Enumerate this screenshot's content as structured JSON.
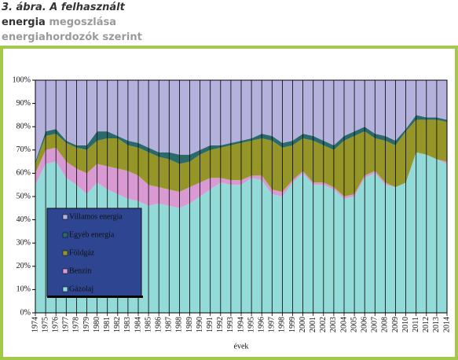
{
  "header": {
    "line1": "3. ábra. A felhasznált",
    "line2a": "energia",
    "line2b": "megoszlása",
    "line3": "energiahordozók szerint"
  },
  "chart_data": {
    "type": "area",
    "stacked": true,
    "x_label": "évek",
    "legend": "lower left",
    "grid": false,
    "x": [
      1974,
      1975,
      1976,
      1977,
      1978,
      1979,
      1980,
      1981,
      1982,
      1983,
      1984,
      1985,
      1986,
      1987,
      1988,
      1989,
      1990,
      1991,
      1992,
      1993,
      1994,
      1995,
      1996,
      1997,
      1998,
      1999,
      2000,
      2001,
      2002,
      2003,
      2004,
      2005,
      2006,
      2007,
      2008,
      2009,
      2010,
      2011,
      2012,
      2013,
      2014
    ],
    "xlim": [
      1974,
      2014
    ],
    "ylim": [
      0,
      100
    ],
    "yticks": [
      {
        "value": 0,
        "label": "0%"
      },
      {
        "value": 10,
        "label": "10%"
      },
      {
        "value": 20,
        "label": "20%"
      },
      {
        "value": 30,
        "label": "30%"
      },
      {
        "value": 40,
        "label": "40%"
      },
      {
        "value": 50,
        "label": "50%"
      },
      {
        "value": 60,
        "label": "60%"
      },
      {
        "value": 70,
        "label": "70%"
      },
      {
        "value": 80,
        "label": "80%"
      },
      {
        "value": 90,
        "label": "90%"
      },
      {
        "value": 100,
        "label": "100%"
      }
    ],
    "series": [
      {
        "name": "Gázolaj",
        "color": "#93dbd8",
        "values": [
          55,
          64,
          65,
          58,
          55,
          51,
          56,
          53,
          51,
          49,
          48,
          46,
          47,
          46,
          45,
          47,
          50,
          53,
          56,
          55,
          55,
          58,
          57,
          51,
          50,
          56,
          60,
          55,
          55,
          53,
          49,
          50,
          58,
          60,
          55,
          54,
          56,
          69,
          68,
          66,
          64
        ]
      },
      {
        "name": "Benzin",
        "color": "#d99ad3",
        "values": [
          5,
          6,
          6,
          7,
          7,
          9,
          8,
          10,
          11,
          12,
          11,
          9,
          7,
          7,
          7,
          7,
          6,
          5,
          2,
          2,
          2,
          1,
          2,
          2,
          2,
          1,
          1,
          1,
          1,
          1,
          1,
          1,
          1,
          1,
          1,
          0,
          0,
          0,
          0,
          0,
          1
        ]
      },
      {
        "name": "Földgáz",
        "color": "#969628",
        "values": [
          4,
          6,
          6,
          8,
          9,
          10,
          10,
          12,
          13,
          11,
          12,
          14,
          13,
          13,
          12,
          11,
          12,
          12,
          13,
          15,
          16,
          15,
          16,
          21,
          19,
          15,
          14,
          18,
          16,
          16,
          24,
          25,
          19,
          14,
          18,
          18,
          22,
          14,
          15,
          17,
          17
        ]
      },
      {
        "name": "Egyéb energia",
        "color": "#2a6a6a",
        "values": [
          1,
          2,
          2,
          1,
          1,
          2,
          4,
          3,
          1,
          2,
          2,
          2,
          2,
          3,
          4,
          3,
          2,
          2,
          1,
          1,
          1,
          1,
          2,
          2,
          2,
          2,
          2,
          2,
          2,
          2,
          2,
          2,
          2,
          2,
          2,
          2,
          1,
          2,
          1,
          1,
          1
        ]
      },
      {
        "name": "Villamos energia",
        "color": "#b4b1dd",
        "values": [
          35,
          22,
          21,
          26,
          28,
          28,
          22,
          22,
          24,
          26,
          27,
          29,
          31,
          31,
          32,
          32,
          30,
          28,
          28,
          27,
          26,
          25,
          23,
          24,
          27,
          26,
          23,
          24,
          26,
          28,
          24,
          22,
          20,
          23,
          24,
          26,
          21,
          15,
          16,
          16,
          17
        ]
      }
    ]
  }
}
